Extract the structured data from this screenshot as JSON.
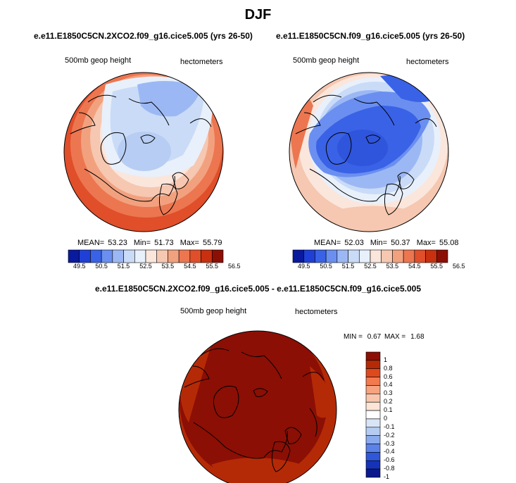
{
  "page": {
    "title": "DJF"
  },
  "panels": [
    {
      "case": "e.e11.E1850C5CN.2XCO2.f09_g16.cice5.005 (yrs 26-50)",
      "variable": "500mb geop height",
      "units": "hectometers",
      "stats": {
        "mean_label": "MEAN=",
        "mean": "53.23",
        "min_label": "Min=",
        "min": "51.73",
        "max_label": "Max=",
        "max": "55.79"
      },
      "colorbar_ticks": [
        "49.5",
        "50.5",
        "51.5",
        "52.5",
        "53.5",
        "54.5",
        "55.5",
        "56.5"
      ]
    },
    {
      "case": "e.e11.E1850C5CN.f09_g16.cice5.005 (yrs 26-50)",
      "variable": "500mb geop height",
      "units": "hectometers",
      "stats": {
        "mean_label": "MEAN=",
        "mean": "52.03",
        "min_label": "Min=",
        "min": "50.37",
        "max_label": "Max=",
        "max": "55.08"
      },
      "colorbar_ticks": [
        "49.5",
        "50.5",
        "51.5",
        "52.5",
        "53.5",
        "54.5",
        "55.5",
        "56.5"
      ]
    }
  ],
  "diff_panel": {
    "case": "e.e11.E1850C5CN.2XCO2.f09_g16.cice5.005 - e.e11.E1850C5CN.f09_g16.cice5.005",
    "variable": "500mb geop height",
    "units": "hectometers",
    "stats": {
      "min_label": "MIN =",
      "min": "0.67",
      "max_label": "MAX =",
      "max": "1.68"
    },
    "colorbar_ticks": [
      "1",
      "0.8",
      "0.6",
      "0.4",
      "0.3",
      "0.2",
      "0.1",
      "0",
      "-0.1",
      "-0.2",
      "-0.3",
      "-0.4",
      "-0.6",
      "-0.8",
      "-1"
    ]
  },
  "colors": {
    "abs_scale": [
      "#0a1a9e",
      "#1f3fd6",
      "#3a62e6",
      "#6a8ff0",
      "#9cb8f4",
      "#c9dbf7",
      "#e8f0fb",
      "#fbe6dc",
      "#f6c7b1",
      "#f2a17f",
      "#ec7650",
      "#e04e2a",
      "#c8300f",
      "#8b0f05"
    ],
    "diff_scale": [
      "#8b0f05",
      "#b52a06",
      "#de4a1d",
      "#f27a4f",
      "#f6a37f",
      "#f8c6ad",
      "#fce4d6",
      "#ffffff",
      "#d7e5f7",
      "#b5ccf2",
      "#8aaaee",
      "#5b82e6",
      "#2f57d9",
      "#1633b8",
      "#0a1a8c"
    ],
    "coast": "#000000"
  },
  "chart_data": [
    {
      "type": "heatmap",
      "projection": "north-polar-stereographic",
      "title": "e.e11.E1850C5CN.2XCO2.f09_g16.cice5.005 (yrs 26-50)",
      "variable": "500mb geop height",
      "units": "hectometers",
      "mean": 53.23,
      "min": 51.73,
      "max": 55.79,
      "contour_levels": [
        49.5,
        50,
        50.5,
        51,
        51.5,
        52,
        52.5,
        53,
        53.5,
        54,
        54.5,
        55,
        55.5,
        56,
        56.5
      ]
    },
    {
      "type": "heatmap",
      "projection": "north-polar-stereographic",
      "title": "e.e11.E1850C5CN.f09_g16.cice5.005 (yrs 26-50)",
      "variable": "500mb geop height",
      "units": "hectometers",
      "mean": 52.03,
      "min": 50.37,
      "max": 55.08,
      "contour_levels": [
        49.5,
        50,
        50.5,
        51,
        51.5,
        52,
        52.5,
        53,
        53.5,
        54,
        54.5,
        55,
        55.5,
        56,
        56.5
      ]
    },
    {
      "type": "heatmap",
      "projection": "north-polar-stereographic",
      "title": "e.e11.E1850C5CN.2XCO2.f09_g16.cice5.005 - e.e11.E1850C5CN.f09_g16.cice5.005",
      "variable": "500mb geop height",
      "units": "hectometers",
      "min": 0.67,
      "max": 1.68,
      "contour_levels": [
        -1,
        -0.8,
        -0.6,
        -0.4,
        -0.3,
        -0.2,
        -0.1,
        0,
        0.1,
        0.2,
        0.3,
        0.4,
        0.6,
        0.8,
        1
      ]
    }
  ]
}
